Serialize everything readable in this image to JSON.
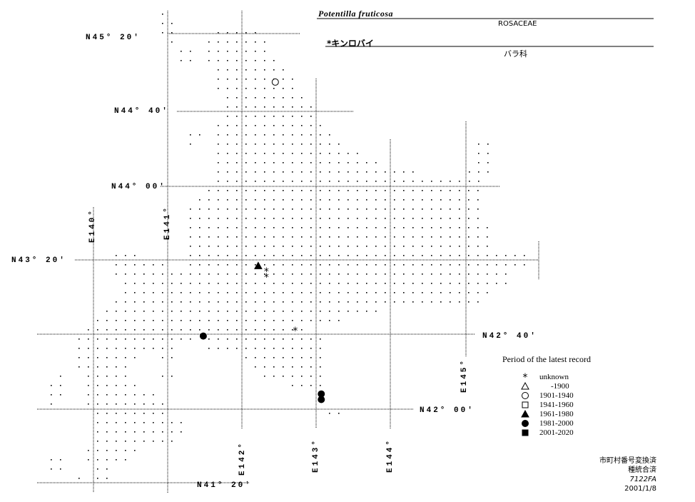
{
  "header": {
    "scientific_name": "Potentilla fruticosa",
    "family_latin": "ROSACEAE",
    "japanese_name": "*キンロバイ",
    "family_japanese": "バラ科"
  },
  "grid_labels": {
    "lat_45_20": "N45° 20′",
    "lat_44_40": "N44° 40′",
    "lat_44_00": "N44° 00′",
    "lat_43_20": "N43° 20′",
    "lat_42_40": "N42° 40′",
    "lat_42_00": "N42° 00′",
    "lat_41_20": "N41° 20′",
    "lon_140": "E140°",
    "lon_141": "E141°",
    "lon_142": "E142°",
    "lon_143": "E143°",
    "lon_144": "E144°",
    "lon_145": "E145°"
  },
  "legend": {
    "title": "Period of the latest record",
    "items": [
      {
        "symbol": "asterisk",
        "label": "unknown"
      },
      {
        "symbol": "open-triangle",
        "label": "-1900"
      },
      {
        "symbol": "open-circle",
        "label": "1901-1940"
      },
      {
        "symbol": "open-square",
        "label": "1941-1960"
      },
      {
        "symbol": "filled-triangle",
        "label": "1961-1980"
      },
      {
        "symbol": "filled-circle",
        "label": "1981-2000"
      },
      {
        "symbol": "filled-square",
        "label": "2001-2020"
      }
    ]
  },
  "footer": {
    "line1": "市町村番号変換済",
    "line2": "種統合済",
    "line3": "7122FA",
    "line4": "2001/1/8"
  },
  "records": [
    {
      "symbol": "open-circle",
      "lat": 44.93,
      "lon": 142.45
    },
    {
      "symbol": "filled-triangle",
      "lat": 43.28,
      "lon": 142.22
    },
    {
      "symbol": "asterisk",
      "lat": 43.23,
      "lon": 142.33
    },
    {
      "symbol": "asterisk",
      "lat": 43.18,
      "lon": 142.33
    },
    {
      "symbol": "asterisk",
      "lat": 42.7,
      "lon": 142.72
    },
    {
      "symbol": "filled-circle",
      "lat": 42.65,
      "lon": 141.48
    },
    {
      "symbol": "filled-circle",
      "lat": 42.13,
      "lon": 143.07
    },
    {
      "symbol": "filled-circle",
      "lat": 42.08,
      "lon": 143.07
    }
  ]
}
